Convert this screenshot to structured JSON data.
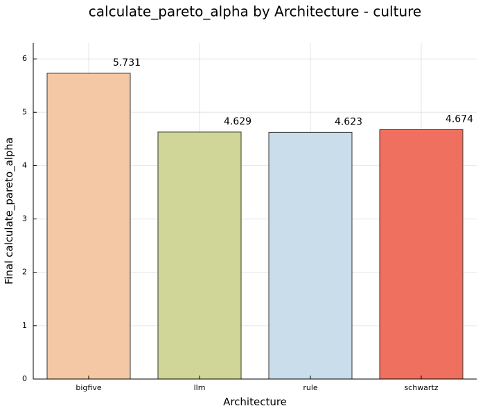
{
  "chart_data": {
    "type": "bar",
    "title": "calculate_pareto_alpha by Architecture - culture",
    "xlabel": "Architecture",
    "ylabel": "Final calculate_pareto_alpha",
    "categories": [
      "bigfive",
      "llm",
      "rule",
      "schwartz"
    ],
    "values": [
      5.731,
      4.629,
      4.623,
      4.674
    ],
    "data_labels": [
      "5.731",
      "4.629",
      "4.623",
      "4.674"
    ],
    "colors": [
      "#f4c8a4",
      "#cfd697",
      "#c9ddeb",
      "#ef705e"
    ],
    "ylim": [
      0,
      6.3
    ],
    "yticks": [
      0,
      1,
      2,
      3,
      4,
      5,
      6
    ],
    "grid": true,
    "legend": "none"
  }
}
